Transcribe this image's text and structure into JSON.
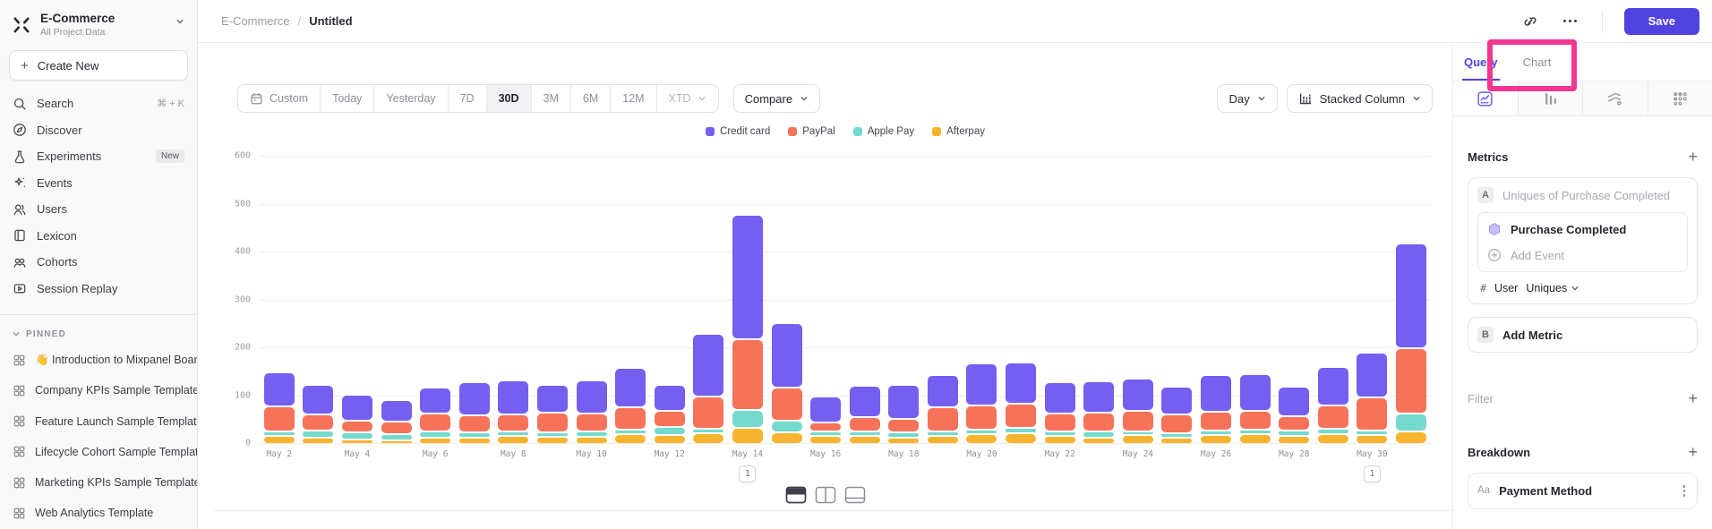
{
  "sidebar": {
    "project": {
      "name": "E-Commerce",
      "subtitle": "All Project Data"
    },
    "create_new": "Create New",
    "nav": [
      {
        "label": "Search",
        "icon": "search",
        "shortcut": "⌘ + K"
      },
      {
        "label": "Discover",
        "icon": "compass"
      },
      {
        "label": "Experiments",
        "icon": "flask",
        "badge": "New"
      },
      {
        "label": "Events",
        "icon": "spark"
      },
      {
        "label": "Users",
        "icon": "users"
      },
      {
        "label": "Lexicon",
        "icon": "book"
      },
      {
        "label": "Cohorts",
        "icon": "cohorts"
      },
      {
        "label": "Session Replay",
        "icon": "replay"
      }
    ],
    "pinned_header": "PINNED",
    "pinned": [
      "👋 Introduction to Mixpanel Boards",
      "Company KPIs Sample Template",
      "Feature Launch Sample Template",
      "Lifecycle Cohort Sample Template",
      "Marketing KPIs Sample Template",
      "Web Analytics Template"
    ]
  },
  "header": {
    "breadcrumb_project": "E-Commerce",
    "breadcrumb_sep": "/",
    "breadcrumb_page": "Untitled",
    "save_label": "Save"
  },
  "toolbar": {
    "ranges": [
      "Custom",
      "Today",
      "Yesterday",
      "7D",
      "30D",
      "3M",
      "6M",
      "12M"
    ],
    "active_range": "30D",
    "xtd": "XTD",
    "compare": "Compare",
    "granularity": "Day",
    "chart_type": "Stacked Column"
  },
  "chart_data": {
    "type": "bar",
    "stacked": true,
    "title": "",
    "xlabel": "",
    "ylabel": "",
    "ylim": [
      0,
      600
    ],
    "yticks": [
      0,
      100,
      200,
      300,
      400,
      500,
      600
    ],
    "grid": true,
    "legend_position": "top",
    "x_label_every": 2,
    "categories": [
      "May 2",
      "May 3",
      "May 4",
      "May 5",
      "May 6",
      "May 7",
      "May 8",
      "May 9",
      "May 10",
      "May 11",
      "May 12",
      "May 13",
      "May 14",
      "May 15",
      "May 16",
      "May 17",
      "May 18",
      "May 19",
      "May 20",
      "May 21",
      "May 22",
      "May 23",
      "May 24",
      "May 25",
      "May 26",
      "May 27",
      "May 28",
      "May 29",
      "May 30",
      "May 31"
    ],
    "series": [
      {
        "name": "Credit card",
        "color": "#755ff0",
        "values": [
          70,
          62,
          54,
          46,
          54,
          69,
          72,
          57,
          69,
          82,
          55,
          131,
          259,
          134,
          54,
          66,
          70,
          67,
          87,
          86,
          65,
          64,
          68,
          59,
          77,
          76,
          61,
          79,
          93,
          219
        ]
      },
      {
        "name": "PayPal",
        "color": "#f6735a",
        "values": [
          54,
          33,
          24,
          25,
          37,
          36,
          34,
          42,
          38,
          47,
          34,
          67,
          148,
          69,
          19,
          30,
          29,
          50,
          51,
          51,
          39,
          39,
          43,
          39,
          40,
          39,
          29,
          50,
          69,
          137
        ]
      },
      {
        "name": "Apple Pay",
        "color": "#74dacd",
        "values": [
          7,
          16,
          15,
          13,
          14,
          10,
          10,
          9,
          11,
          10,
          17,
          10,
          37,
          25,
          7,
          10,
          11,
          10,
          8,
          11,
          7,
          14,
          8,
          8,
          8,
          10,
          13,
          10,
          10,
          36
        ]
      },
      {
        "name": "Afterpay",
        "color": "#f6b42f",
        "values": [
          17,
          13,
          10,
          8,
          13,
          14,
          17,
          15,
          15,
          20,
          18,
          22,
          34,
          24,
          17,
          16,
          13,
          17,
          21,
          22,
          17,
          13,
          18,
          14,
          19,
          20,
          16,
          21,
          19,
          27
        ]
      }
    ],
    "annotations": [
      {
        "category": "May 14",
        "label": "1"
      },
      {
        "category": "May 30",
        "label": "1"
      }
    ]
  },
  "right_panel": {
    "tabs": {
      "query": "Query",
      "chart": "Chart"
    },
    "metrics": {
      "title": "Metrics",
      "row_letter": "A",
      "row_placeholder": "Uniques of Purchase Completed",
      "event_name": "Purchase Completed",
      "add_event": "Add Event",
      "count_symbol": "#",
      "count_entity": "User",
      "count_type": "Uniques",
      "add_letter": "B",
      "add_metric": "Add Metric"
    },
    "filter_title": "Filter",
    "breakdown": {
      "title": "Breakdown",
      "type_badge": "Aa",
      "property": "Payment Method"
    }
  }
}
